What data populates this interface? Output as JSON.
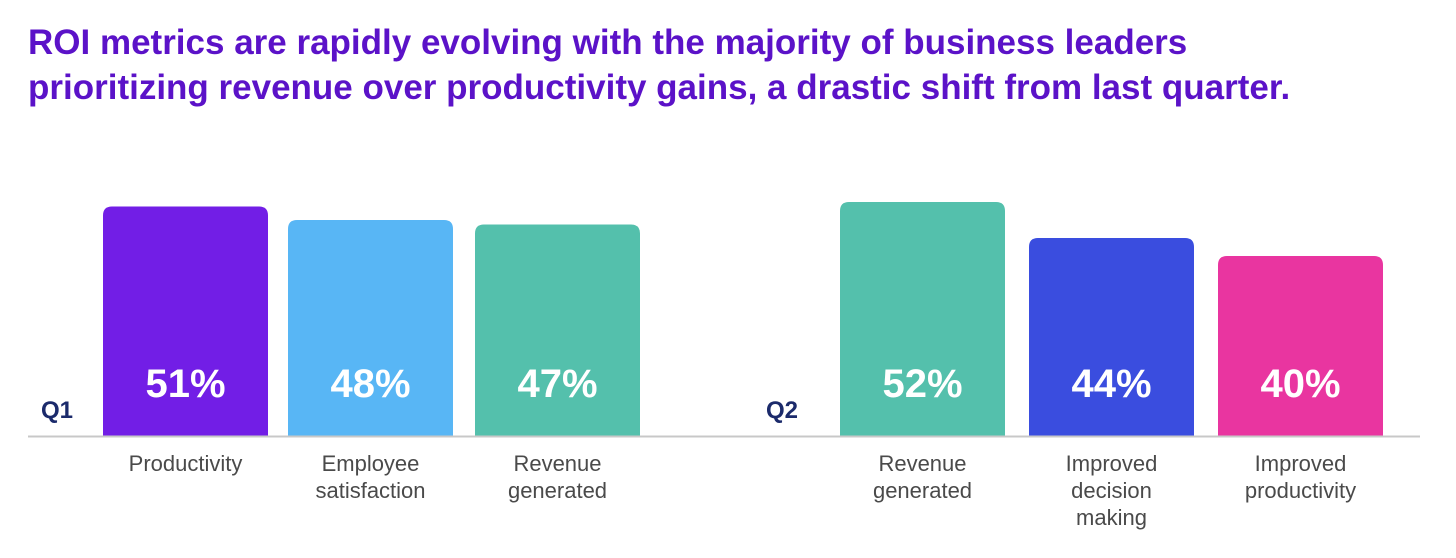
{
  "chart_data": {
    "type": "bar",
    "title_lines": [
      "ROI metrics are rapidly evolving with the majority of business leaders",
      "prioritizing revenue over productivity gains, a drastic shift from last quarter."
    ],
    "value_suffix": "%",
    "groups": [
      {
        "name": "Q1",
        "bars": [
          {
            "label_lines": [
              "Productivity"
            ],
            "value": 51,
            "color": "#721ee6"
          },
          {
            "label_lines": [
              "Employee",
              "satisfaction"
            ],
            "value": 48,
            "color": "#58b6f5"
          },
          {
            "label_lines": [
              "Revenue",
              "generated"
            ],
            "value": 47,
            "color": "#54c0ac"
          }
        ]
      },
      {
        "name": "Q2",
        "bars": [
          {
            "label_lines": [
              "Revenue",
              "generated"
            ],
            "value": 52,
            "color": "#54c0ac"
          },
          {
            "label_lines": [
              "Improved",
              "decision",
              "making"
            ],
            "value": 44,
            "color": "#3a4ddf"
          },
          {
            "label_lines": [
              "Improved",
              "productivity"
            ],
            "value": 40,
            "color": "#e935a0"
          }
        ]
      }
    ],
    "colors": {
      "title": "#5b12c8",
      "group_label": "#1b2a6b",
      "category_label": "#4a4a4a",
      "value_label": "#ffffff",
      "baseline": "#c8c8c8"
    }
  }
}
